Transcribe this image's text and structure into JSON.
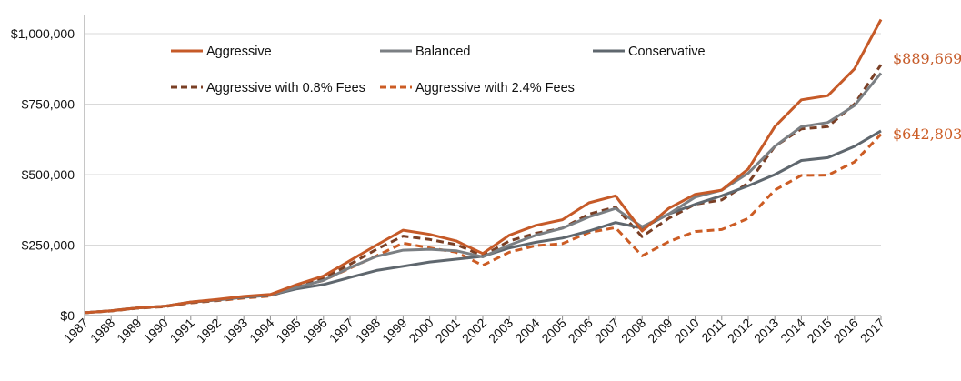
{
  "chart_data": {
    "type": "line",
    "title": "",
    "xlabel": "",
    "ylabel": "",
    "ylim": [
      0,
      1000000
    ],
    "grid": "horizontal",
    "legend_position": "top-left",
    "y_ticks": [
      {
        "value": 0,
        "label": "$0"
      },
      {
        "value": 250000,
        "label": "$250,000"
      },
      {
        "value": 500000,
        "label": "$500,000"
      },
      {
        "value": 750000,
        "label": "$750,000"
      },
      {
        "value": 1000000,
        "label": "$1,000,000"
      }
    ],
    "x": [
      "1987",
      "1988",
      "1989",
      "1990",
      "1991",
      "1992",
      "1993",
      "1994",
      "1995",
      "1996",
      "1997",
      "1998",
      "1999",
      "2000",
      "2001",
      "2002",
      "2003",
      "2004",
      "2005",
      "2006",
      "2007",
      "2008",
      "2009",
      "2010",
      "2011",
      "2012",
      "2013",
      "2014",
      "2015",
      "2016",
      "2017"
    ],
    "series": [
      {
        "name": "Aggressive",
        "color": "#c65a28",
        "style": "solid",
        "values": [
          10000,
          17000,
          27000,
          33000,
          48000,
          57000,
          68000,
          75000,
          110000,
          140000,
          195000,
          250000,
          303000,
          288000,
          265000,
          220000,
          285000,
          320000,
          340000,
          400000,
          425000,
          300000,
          380000,
          430000,
          445000,
          520000,
          670000,
          765000,
          780000,
          875000,
          1050000
        ]
      },
      {
        "name": "Balanced",
        "color": "#7b7f83",
        "style": "solid",
        "values": [
          10000,
          17000,
          27000,
          33000,
          48000,
          56000,
          67000,
          73000,
          100000,
          125000,
          170000,
          210000,
          232000,
          235000,
          230000,
          208000,
          250000,
          285000,
          310000,
          350000,
          380000,
          315000,
          360000,
          420000,
          445000,
          505000,
          600000,
          670000,
          685000,
          745000,
          860000
        ]
      },
      {
        "name": "Conservative",
        "color": "#5f676e",
        "style": "solid",
        "values": [
          10000,
          17000,
          27000,
          33000,
          47000,
          55000,
          65000,
          72000,
          95000,
          110000,
          135000,
          160000,
          175000,
          190000,
          200000,
          210000,
          240000,
          260000,
          275000,
          300000,
          330000,
          310000,
          360000,
          395000,
          425000,
          460000,
          500000,
          550000,
          560000,
          600000,
          655000
        ]
      },
      {
        "name": "Aggressive with 0.8% Fees",
        "color": "#7a3f25",
        "style": "dashed",
        "values": [
          10000,
          16500,
          26500,
          32000,
          46500,
          54500,
          65000,
          71500,
          105000,
          132000,
          182000,
          235000,
          282000,
          270000,
          252000,
          212000,
          265000,
          292000,
          310000,
          360000,
          385000,
          280000,
          345000,
          395000,
          410000,
          470000,
          600000,
          662000,
          670000,
          750000,
          889669
        ]
      },
      {
        "name": "Aggressive with 2.4% Fees",
        "color": "#cc5c24",
        "style": "dashed",
        "values": [
          10000,
          16000,
          26000,
          31000,
          45000,
          53000,
          62000,
          69000,
          100000,
          125000,
          168000,
          212000,
          257000,
          240000,
          225000,
          178000,
          225000,
          248000,
          255000,
          295000,
          312000,
          212000,
          262000,
          298000,
          305000,
          345000,
          445000,
          497000,
          498000,
          545000,
          642803
        ]
      }
    ],
    "annotations": [
      {
        "text": "$889,669",
        "color": "#c65a28",
        "value": 889669
      },
      {
        "text": "$642,803",
        "color": "#cc5c24",
        "value": 642803
      }
    ],
    "legend": [
      {
        "label": "Aggressive",
        "color": "#c65a28",
        "style": "solid"
      },
      {
        "label": "Balanced",
        "color": "#7b7f83",
        "style": "solid"
      },
      {
        "label": "Conservative",
        "color": "#5f676e",
        "style": "solid"
      },
      {
        "label": "Aggressive with 0.8% Fees",
        "color": "#7a3f25",
        "style": "dashed"
      },
      {
        "label": "Aggressive with 2.4% Fees",
        "color": "#cc5c24",
        "style": "dashed"
      }
    ]
  }
}
